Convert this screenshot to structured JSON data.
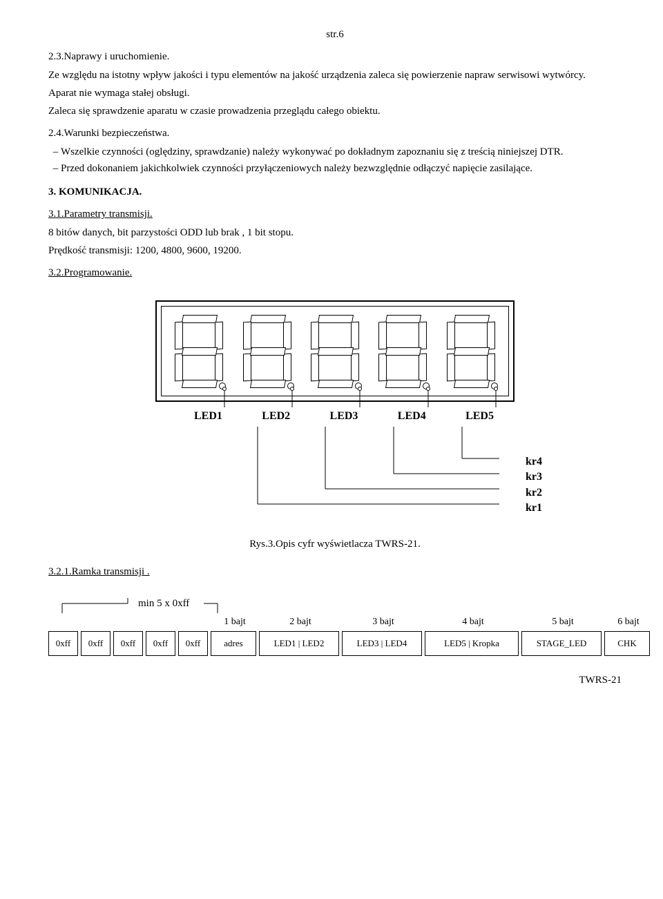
{
  "page_number": "str.6",
  "s23": {
    "title": "2.3.Naprawy i uruchomienie.",
    "p1": "Ze względu na istotny wpływ jakości i typu elementów na jakość urządzenia zaleca się powierzenie napraw serwisowi wytwórcy.",
    "p2": "Aparat nie wymaga stałej obsługi.",
    "p3": "Zaleca się sprawdzenie aparatu w czasie prowadzenia przeglądu całego obiektu."
  },
  "s24": {
    "title": "2.4.Warunki bezpieczeństwa.",
    "b1": "Wszelkie czynności (oględziny, sprawdzanie) należy wykonywać po dokładnym zapoznaniu się z treścią niniejszej DTR.",
    "b2": "Przed dokonaniem jakichkolwiek czynności przyłączeniowych należy bezwzględnie odłączyć napięcie zasilające."
  },
  "s3": {
    "title": "3. KOMUNIKACJA."
  },
  "s31": {
    "title": "3.1.Parametry transmisji.",
    "p1": "8 bitów danych, bit parzystości ODD lub brak , 1 bit stopu.",
    "p2": "Prędkość transmisji: 1200, 4800, 9600, 19200."
  },
  "s32": {
    "title": "3.2.Programowanie."
  },
  "display": {
    "led_labels": [
      "LED1",
      "LED2",
      "LED3",
      "LED4",
      "LED5"
    ],
    "kr_labels": [
      "kr4",
      "kr3",
      "kr2",
      "kr1"
    ],
    "kr_x": [
      148,
      246,
      345,
      444
    ],
    "kr_y": [
      112,
      90,
      68,
      46
    ],
    "leader_x": [
      100,
      198,
      296,
      395,
      493
    ]
  },
  "caption": "Rys.3.Opis cyfr wyświetlacza TWRS-21.",
  "s321": {
    "title": "3.2.1.Ramka transmisji ."
  },
  "frame": {
    "min_label": "min 5 x 0xff",
    "headers": [
      "",
      "",
      "",
      "",
      "",
      "1 bajt",
      "2 bajt",
      "3 bajt",
      "4 bajt",
      "5 bajt",
      "6 bajt"
    ],
    "cells": [
      "0xff",
      "0xff",
      "0xff",
      "0xff",
      "0xff",
      "adres",
      "LED1 | LED2",
      "LED3 | LED4",
      "LED5 | Kropka",
      "STAGE_LED",
      "CHK"
    ]
  },
  "footer": "TWRS-21"
}
